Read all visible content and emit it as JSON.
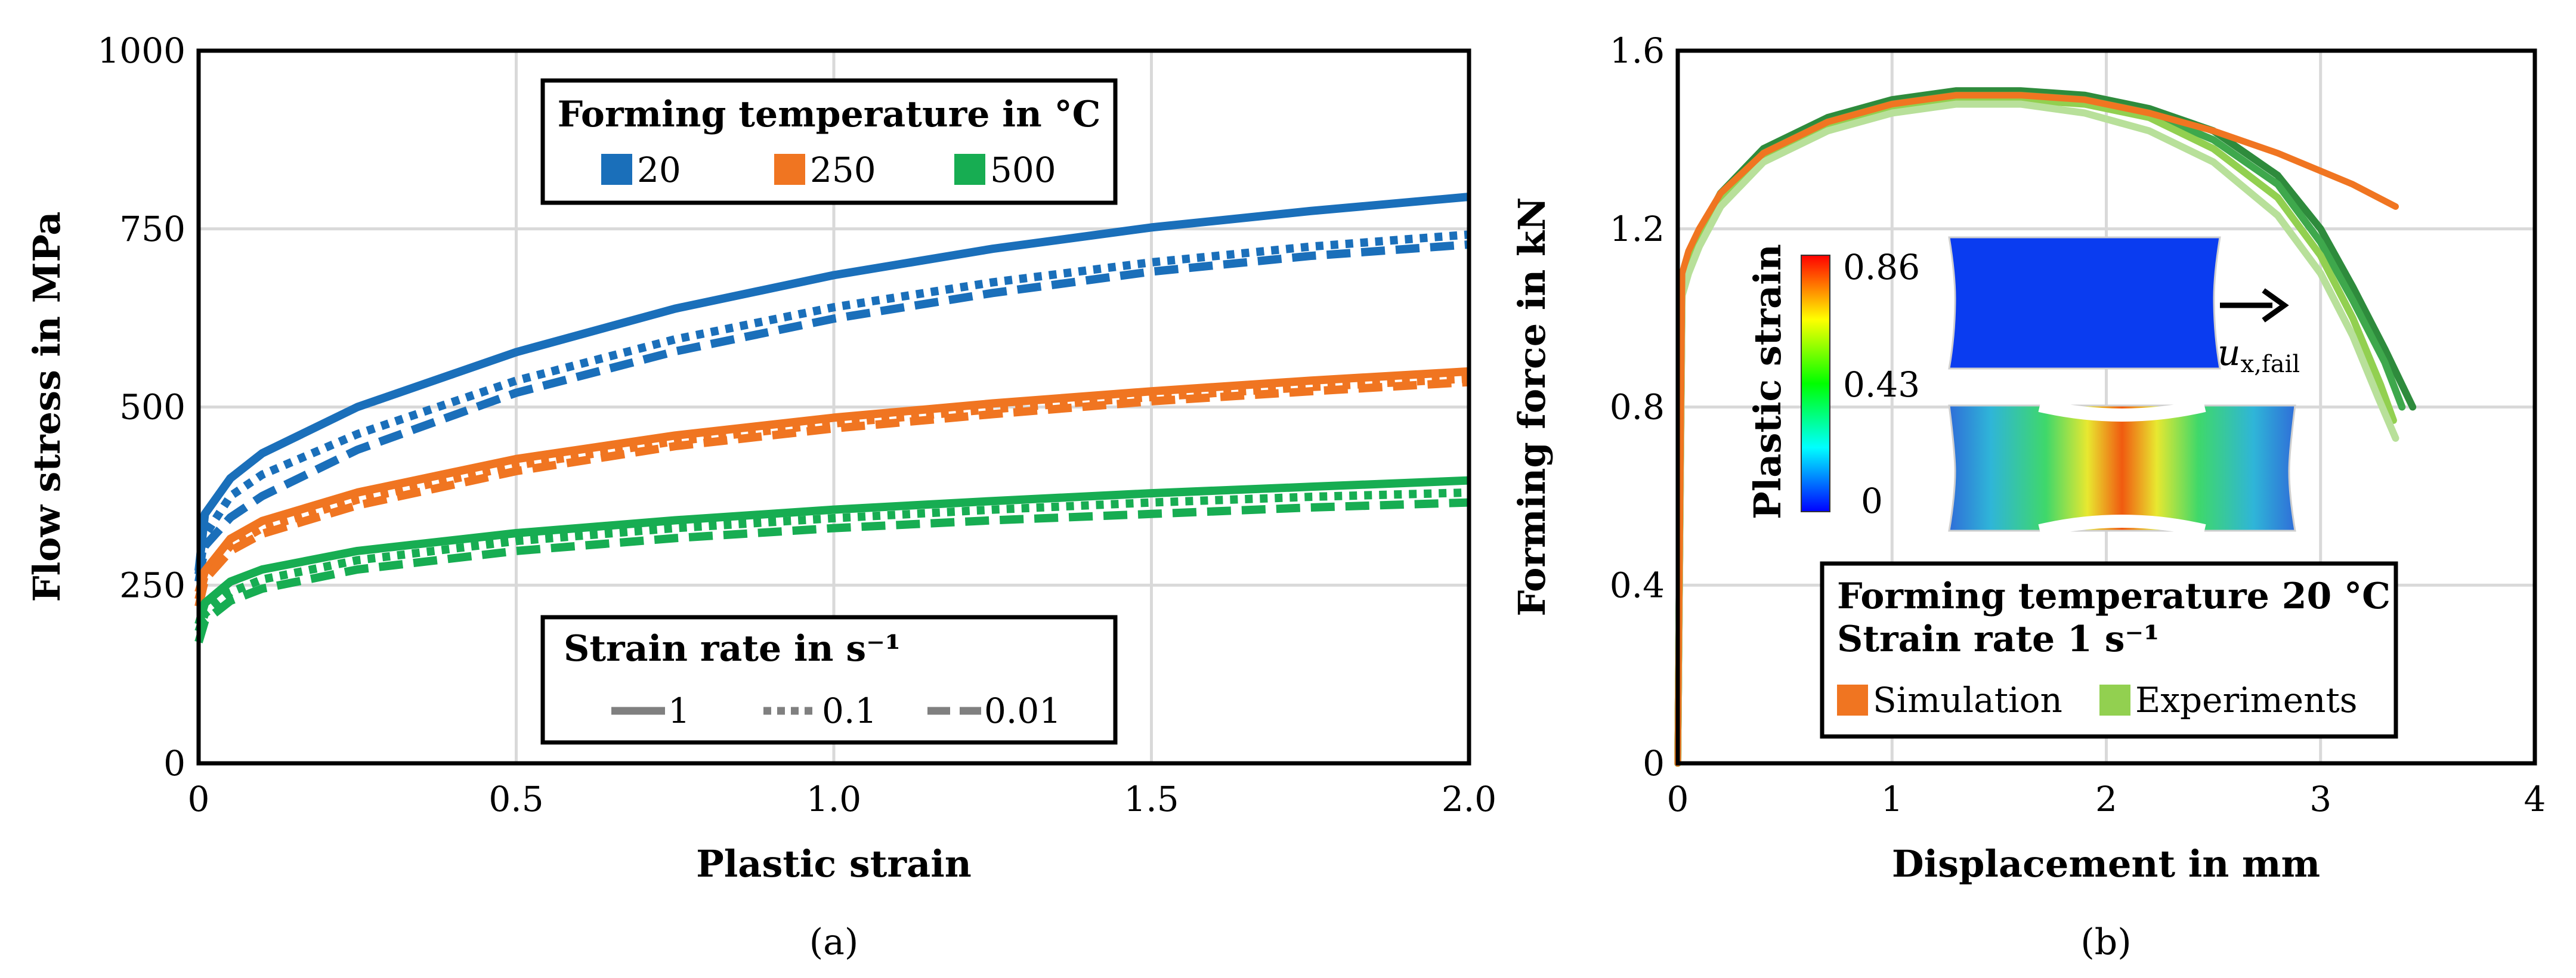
{
  "colors": {
    "t20": "#1a6fba",
    "t250": "#f07521",
    "t500": "#17ad52",
    "gray": "#808080",
    "grid": "#d9d9d9",
    "simulation": "#f07521",
    "experiments": "#92d050",
    "exp_dark": "#2e8b3c"
  },
  "chart_data": [
    {
      "type": "line",
      "panel": "a",
      "caption": "(a)",
      "xlabel": "Plastic strain",
      "ylabel": "Flow stress in MPa",
      "xlim": [
        0,
        2.0
      ],
      "ylim": [
        0,
        1000
      ],
      "xticks": [
        0,
        0.5,
        1.0,
        1.5,
        2.0
      ],
      "xtick_labels": [
        "0",
        "0.5",
        "1.0",
        "1.5",
        "2.0"
      ],
      "yticks": [
        0,
        250,
        500,
        750,
        1000
      ],
      "ytick_labels": [
        "0",
        "250",
        "500",
        "750",
        "1000"
      ],
      "grid": true,
      "legend_temperature": {
        "title": "Forming temperature in °C",
        "entries": [
          "20",
          "250",
          "500"
        ]
      },
      "legend_strain_rate": {
        "title": "Strain rate in s⁻¹",
        "entries": [
          "1",
          "0.1",
          "0.01"
        ]
      },
      "series": [
        {
          "name": "20 °C, 1 s⁻¹",
          "temperature": "20",
          "rate": "1",
          "x": [
            0,
            0.01,
            0.05,
            0.1,
            0.25,
            0.5,
            0.75,
            1.0,
            1.25,
            1.5,
            1.75,
            2.0
          ],
          "y": [
            270,
            350,
            400,
            435,
            500,
            577,
            638,
            685,
            722,
            752,
            775,
            795
          ]
        },
        {
          "name": "20 °C, 0.1 s⁻¹",
          "temperature": "20",
          "rate": "0.1",
          "x": [
            0,
            0.01,
            0.05,
            0.1,
            0.25,
            0.5,
            0.75,
            1.0,
            1.25,
            1.5,
            1.75,
            2.0
          ],
          "y": [
            265,
            320,
            375,
            405,
            462,
            537,
            595,
            640,
            675,
            703,
            725,
            742
          ]
        },
        {
          "name": "20 °C, 0.01 s⁻¹",
          "temperature": "20",
          "rate": "0.01",
          "x": [
            0,
            0.01,
            0.05,
            0.1,
            0.25,
            0.5,
            0.75,
            1.0,
            1.25,
            1.5,
            1.75,
            2.0
          ],
          "y": [
            255,
            305,
            345,
            375,
            440,
            520,
            578,
            624,
            660,
            690,
            712,
            728
          ]
        },
        {
          "name": "250 °C, 1 s⁻¹",
          "temperature": "250",
          "rate": "1",
          "x": [
            0,
            0.01,
            0.05,
            0.1,
            0.25,
            0.5,
            0.75,
            1.0,
            1.25,
            1.5,
            1.75,
            2.0
          ],
          "y": [
            240,
            270,
            315,
            340,
            380,
            427,
            460,
            485,
            505,
            522,
            537,
            550
          ]
        },
        {
          "name": "250 °C, 0.1 s⁻¹",
          "temperature": "250",
          "rate": "0.1",
          "x": [
            0,
            0.01,
            0.05,
            0.1,
            0.25,
            0.5,
            0.75,
            1.0,
            1.25,
            1.5,
            1.75,
            2.0
          ],
          "y": [
            230,
            265,
            305,
            330,
            370,
            418,
            452,
            477,
            497,
            514,
            528,
            540
          ]
        },
        {
          "name": "250 °C, 0.01 s⁻¹",
          "temperature": "250",
          "rate": "0.01",
          "x": [
            0,
            0.01,
            0.05,
            0.1,
            0.25,
            0.5,
            0.75,
            1.0,
            1.25,
            1.5,
            1.75,
            2.0
          ],
          "y": [
            220,
            258,
            298,
            322,
            362,
            410,
            445,
            470,
            490,
            508,
            522,
            535
          ]
        },
        {
          "name": "500 °C, 1 s⁻¹",
          "temperature": "500",
          "rate": "1",
          "x": [
            0,
            0.01,
            0.05,
            0.1,
            0.25,
            0.5,
            0.75,
            1.0,
            1.25,
            1.5,
            1.75,
            2.0
          ],
          "y": [
            195,
            225,
            255,
            272,
            298,
            323,
            341,
            356,
            368,
            379,
            388,
            397
          ]
        },
        {
          "name": "500 °C, 0.1 s⁻¹",
          "temperature": "500",
          "rate": "0.1",
          "x": [
            0,
            0.01,
            0.05,
            0.1,
            0.25,
            0.5,
            0.75,
            1.0,
            1.25,
            1.5,
            1.75,
            2.0
          ],
          "y": [
            185,
            210,
            240,
            258,
            285,
            312,
            330,
            344,
            356,
            366,
            374,
            380
          ]
        },
        {
          "name": "500 °C, 0.01 s⁻¹",
          "temperature": "500",
          "rate": "0.01",
          "x": [
            0,
            0.01,
            0.05,
            0.1,
            0.25,
            0.5,
            0.75,
            1.0,
            1.25,
            1.5,
            1.75,
            2.0
          ],
          "y": [
            170,
            200,
            228,
            245,
            272,
            298,
            316,
            330,
            341,
            350,
            359,
            366
          ]
        }
      ]
    },
    {
      "type": "line",
      "panel": "b",
      "caption": "(b)",
      "xlabel": "Displacement in mm",
      "ylabel": "Forming force in kN",
      "xlim": [
        0,
        4
      ],
      "ylim": [
        0,
        1.6
      ],
      "xticks": [
        0,
        1,
        2,
        3,
        4
      ],
      "xtick_labels": [
        "0",
        "1",
        "2",
        "3",
        "4"
      ],
      "yticks": [
        0,
        0.4,
        0.8,
        1.2,
        1.6
      ],
      "ytick_labels": [
        "0",
        "0.4",
        "0.8",
        "1.2",
        "1.6"
      ],
      "grid": true,
      "legend": {
        "title_line1": "Forming temperature 20 °C",
        "title_line2": "Strain rate 1 s⁻¹",
        "entries": [
          "Simulation",
          "Experiments"
        ]
      },
      "inset": {
        "colorbar_label": "Plastic strain",
        "colorbar_ticks": [
          "0.86",
          "0.43",
          "0"
        ],
        "colorbar_range": [
          0,
          0.86
        ],
        "arrow_label": "u",
        "arrow_subscript": "x,fail"
      },
      "series": [
        {
          "name": "Experiment 1",
          "role": "experiment",
          "x": [
            0,
            0.02,
            0.05,
            0.1,
            0.2,
            0.4,
            0.7,
            1.0,
            1.3,
            1.6,
            1.9,
            2.2,
            2.5,
            2.8,
            3.0,
            3.15,
            3.3,
            3.43
          ],
          "y": [
            0,
            1.08,
            1.13,
            1.19,
            1.28,
            1.38,
            1.45,
            1.49,
            1.51,
            1.51,
            1.5,
            1.47,
            1.42,
            1.32,
            1.2,
            1.07,
            0.93,
            0.8
          ]
        },
        {
          "name": "Experiment 2",
          "role": "experiment",
          "x": [
            0,
            0.02,
            0.05,
            0.1,
            0.2,
            0.4,
            0.7,
            1.0,
            1.3,
            1.6,
            1.9,
            2.2,
            2.5,
            2.8,
            3.0,
            3.15,
            3.3,
            3.38
          ],
          "y": [
            0,
            1.07,
            1.12,
            1.18,
            1.27,
            1.37,
            1.44,
            1.48,
            1.5,
            1.5,
            1.49,
            1.46,
            1.4,
            1.3,
            1.17,
            1.04,
            0.9,
            0.8
          ]
        },
        {
          "name": "Experiment 3",
          "role": "experiment",
          "x": [
            0,
            0.02,
            0.05,
            0.1,
            0.2,
            0.4,
            0.7,
            1.0,
            1.3,
            1.6,
            1.9,
            2.2,
            2.5,
            2.8,
            3.0,
            3.15,
            3.28,
            3.34
          ],
          "y": [
            0,
            1.06,
            1.11,
            1.17,
            1.26,
            1.36,
            1.43,
            1.47,
            1.49,
            1.49,
            1.48,
            1.45,
            1.38,
            1.27,
            1.14,
            1.0,
            0.85,
            0.77
          ]
        },
        {
          "name": "Experiment 4",
          "role": "experiment",
          "x": [
            0,
            0.02,
            0.05,
            0.1,
            0.2,
            0.4,
            0.7,
            1.0,
            1.3,
            1.6,
            1.9,
            2.2,
            2.5,
            2.8,
            3.0,
            3.15,
            3.27,
            3.35
          ],
          "y": [
            0,
            1.05,
            1.1,
            1.16,
            1.25,
            1.35,
            1.42,
            1.46,
            1.48,
            1.48,
            1.46,
            1.42,
            1.35,
            1.23,
            1.1,
            0.96,
            0.82,
            0.73
          ]
        },
        {
          "name": "Simulation",
          "role": "simulation",
          "x": [
            0,
            0.02,
            0.05,
            0.1,
            0.2,
            0.4,
            0.7,
            1.0,
            1.3,
            1.6,
            1.9,
            2.2,
            2.5,
            2.8,
            3.0,
            3.15,
            3.35
          ],
          "y": [
            0,
            1.1,
            1.15,
            1.2,
            1.28,
            1.37,
            1.44,
            1.48,
            1.5,
            1.5,
            1.49,
            1.46,
            1.42,
            1.37,
            1.33,
            1.3,
            1.25
          ]
        }
      ]
    }
  ]
}
